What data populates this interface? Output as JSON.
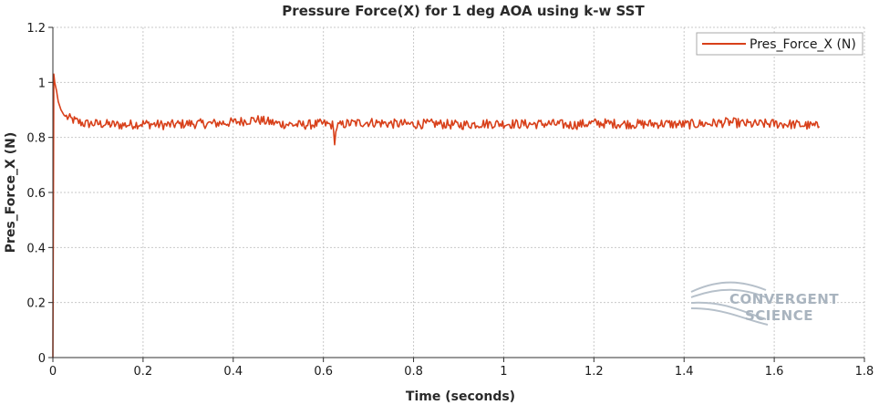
{
  "chart_data": {
    "type": "line",
    "title": "Pressure Force(X) for 1 deg AOA using k-w SST",
    "xlabel": "Time (seconds)",
    "ylabel": "Pres_Force_X (N)",
    "xlim": [
      0,
      1.8
    ],
    "ylim": [
      0,
      1.2
    ],
    "xticks": [
      "0",
      "0.2",
      "0.4",
      "0.6",
      "0.8",
      "1",
      "1.2",
      "1.4",
      "1.6",
      "1.8"
    ],
    "yticks": [
      "0",
      "0.2",
      "0.4",
      "0.6",
      "0.8",
      "1",
      "1.2"
    ],
    "grid": true,
    "legend_position": "top-right",
    "series": [
      {
        "name": "Pres_Force_X (N)",
        "color": "#d8401a",
        "x": [
          0,
          0.002,
          0.004,
          0.008,
          0.012,
          0.018,
          0.025,
          0.035,
          0.05,
          0.07,
          0.1,
          0.15,
          0.2,
          0.25,
          0.3,
          0.35,
          0.4,
          0.45,
          0.5,
          0.55,
          0.6,
          0.62,
          0.625,
          0.63,
          0.65,
          0.7,
          0.75,
          0.8,
          0.85,
          0.9,
          0.95,
          1.0,
          1.05,
          1.1,
          1.15,
          1.2,
          1.25,
          1.3,
          1.35,
          1.4,
          1.45,
          1.5,
          1.55,
          1.6,
          1.65,
          1.7
        ],
        "y": [
          0,
          1.03,
          1.0,
          0.97,
          0.93,
          0.9,
          0.88,
          0.87,
          0.86,
          0.85,
          0.85,
          0.845,
          0.85,
          0.845,
          0.85,
          0.85,
          0.855,
          0.865,
          0.85,
          0.845,
          0.85,
          0.845,
          0.79,
          0.84,
          0.85,
          0.855,
          0.85,
          0.848,
          0.85,
          0.845,
          0.85,
          0.85,
          0.848,
          0.85,
          0.845,
          0.852,
          0.85,
          0.848,
          0.85,
          0.847,
          0.85,
          0.855,
          0.848,
          0.85,
          0.847,
          0.84
        ]
      }
    ]
  },
  "watermark": {
    "line1": "CONVERGENT",
    "line2": "SCIENCE"
  }
}
